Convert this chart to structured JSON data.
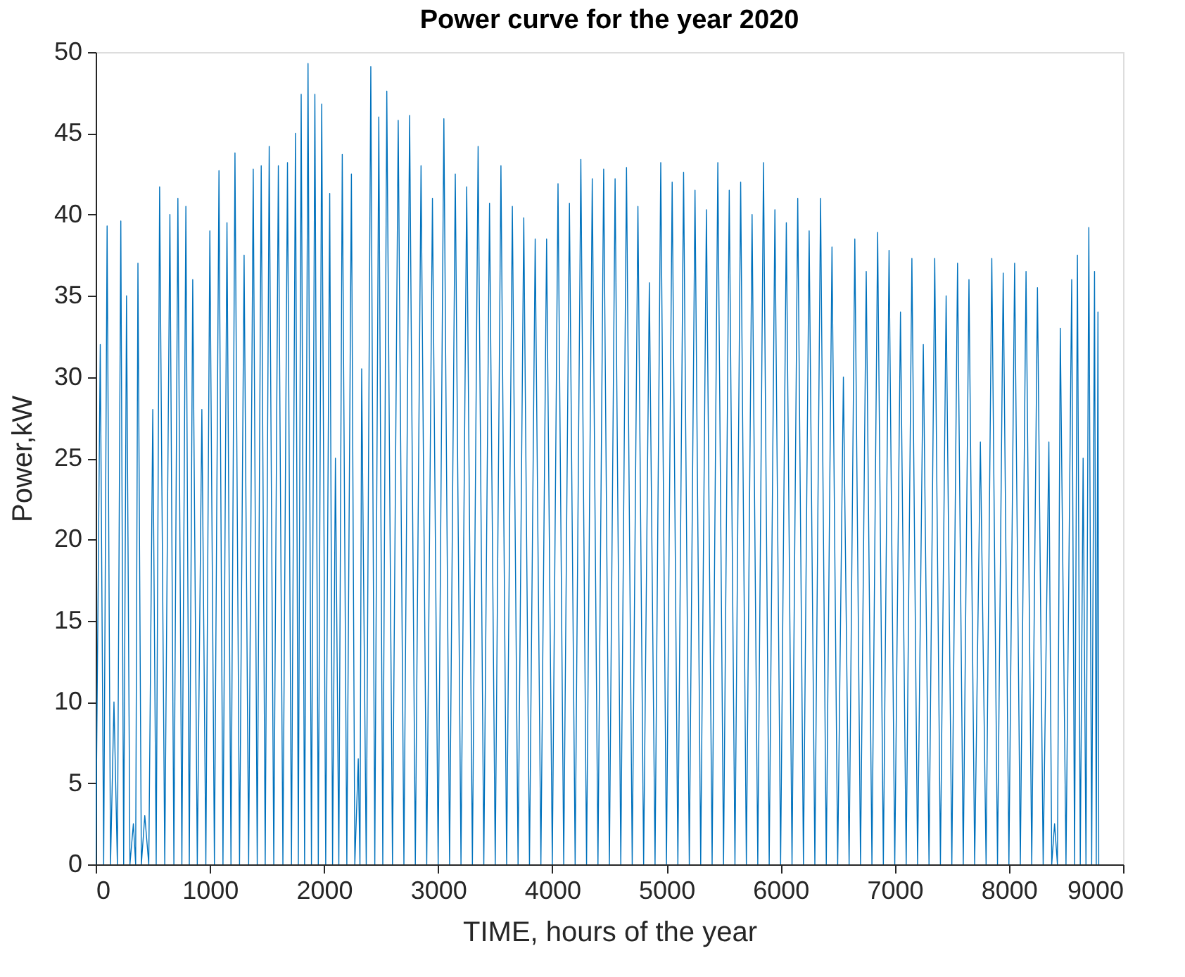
{
  "chart_data": {
    "type": "line",
    "title": "Power curve for the year 2020",
    "xlabel": "TIME, hours of the year",
    "ylabel": "Power,kW",
    "xlim": [
      0,
      9000
    ],
    "xticks": [
      0,
      1000,
      2000,
      3000,
      4000,
      5000,
      6000,
      7000,
      8000,
      9000
    ],
    "ylim": [
      0,
      50
    ],
    "yticks": [
      0,
      5,
      10,
      15,
      20,
      25,
      30,
      35,
      40,
      45,
      50
    ],
    "grid": false,
    "series": [
      {
        "color": "#0072bd",
        "x": [
          0,
          40,
          70,
          100,
          130,
          160,
          190,
          220,
          245,
          270,
          300,
          330,
          350,
          370,
          400,
          430,
          465,
          500,
          530,
          560,
          605,
          650,
          685,
          720,
          755,
          790,
          820,
          850,
          890,
          930,
          965,
          1000,
          1040,
          1080,
          1115,
          1150,
          1185,
          1220,
          1260,
          1300,
          1340,
          1380,
          1415,
          1450,
          1485,
          1520,
          1560,
          1600,
          1640,
          1680,
          1715,
          1750,
          1775,
          1800,
          1830,
          1860,
          1890,
          1920,
          1950,
          1980,
          2015,
          2050,
          2075,
          2100,
          2130,
          2160,
          2200,
          2240,
          2270,
          2300,
          2315,
          2330,
          2370,
          2410,
          2445,
          2480,
          2515,
          2550,
          2600,
          2650,
          2700,
          2750,
          2800,
          2850,
          2900,
          2950,
          3000,
          3050,
          3100,
          3150,
          3200,
          3250,
          3300,
          3350,
          3400,
          3450,
          3500,
          3550,
          3600,
          3650,
          3700,
          3750,
          3800,
          3850,
          3900,
          3950,
          4000,
          4050,
          4100,
          4150,
          4200,
          4250,
          4300,
          4350,
          4400,
          4450,
          4500,
          4550,
          4600,
          4650,
          4700,
          4750,
          4800,
          4850,
          4900,
          4950,
          5000,
          5050,
          5100,
          5150,
          5200,
          5250,
          5300,
          5350,
          5400,
          5450,
          5500,
          5550,
          5600,
          5650,
          5700,
          5750,
          5800,
          5850,
          5900,
          5950,
          6000,
          6050,
          6100,
          6150,
          6200,
          6250,
          6300,
          6350,
          6400,
          6450,
          6500,
          6550,
          6600,
          6650,
          6700,
          6750,
          6800,
          6850,
          6900,
          6950,
          7000,
          7050,
          7100,
          7150,
          7200,
          7250,
          7300,
          7350,
          7400,
          7450,
          7500,
          7550,
          7600,
          7650,
          7700,
          7750,
          7800,
          7850,
          7900,
          7950,
          8000,
          8050,
          8100,
          8150,
          8200,
          8250,
          8300,
          8350,
          8375,
          8400,
          8425,
          8450,
          8500,
          8550,
          8575,
          8600,
          8625,
          8650,
          8675,
          8700,
          8725,
          8750,
          8765,
          8780,
          8787
        ],
        "values": [
          0,
          32,
          0,
          39.3,
          0,
          10,
          0,
          39.6,
          0,
          35,
          0,
          2.5,
          0,
          37,
          0,
          3,
          0,
          28,
          0,
          41.7,
          0,
          40,
          0,
          41,
          0,
          40.5,
          0,
          36,
          0,
          28,
          0,
          39,
          0,
          42.7,
          0,
          39.5,
          0,
          43.8,
          0,
          37.5,
          0,
          42.8,
          0,
          43,
          0,
          44.2,
          0,
          43,
          0,
          43.2,
          0,
          45,
          0,
          47.4,
          0,
          49.3,
          0,
          47.4,
          0,
          46.8,
          0,
          41.3,
          0,
          25,
          0,
          43.7,
          0,
          42.5,
          0,
          6.5,
          0,
          30.5,
          0,
          49.1,
          0,
          46,
          0,
          47.6,
          0,
          45.8,
          0,
          46.1,
          0,
          43,
          0,
          41,
          0,
          45.9,
          0,
          42.5,
          0,
          41.7,
          0,
          44.2,
          0,
          40.7,
          0,
          43,
          0,
          40.5,
          0,
          39.8,
          0,
          38.5,
          0,
          38.5,
          0,
          41.9,
          0,
          40.7,
          0,
          43.4,
          0,
          42.2,
          0,
          42.8,
          0,
          42.2,
          0,
          42.9,
          0,
          40.5,
          0,
          35.8,
          0,
          43.2,
          0,
          42,
          0,
          42.6,
          0,
          41.5,
          0,
          40.3,
          0,
          43.2,
          0,
          41.5,
          0,
          42,
          0,
          40,
          0,
          43.2,
          0,
          40.3,
          0,
          39.5,
          0,
          41,
          0,
          39,
          0,
          41,
          0,
          38,
          0,
          30,
          0,
          38.5,
          0,
          36.5,
          0,
          38.9,
          0,
          37.8,
          0,
          34,
          0,
          37.3,
          0,
          32,
          0,
          37.3,
          0,
          35,
          0,
          37,
          0,
          36,
          0,
          26,
          0,
          37.3,
          0,
          36.4,
          0,
          37,
          0,
          36.5,
          0,
          35.5,
          0,
          26,
          0,
          2.5,
          0,
          33,
          0,
          36,
          0,
          37.5,
          0,
          25,
          0,
          39.2,
          0,
          36.5,
          0,
          34,
          0
        ]
      }
    ]
  }
}
